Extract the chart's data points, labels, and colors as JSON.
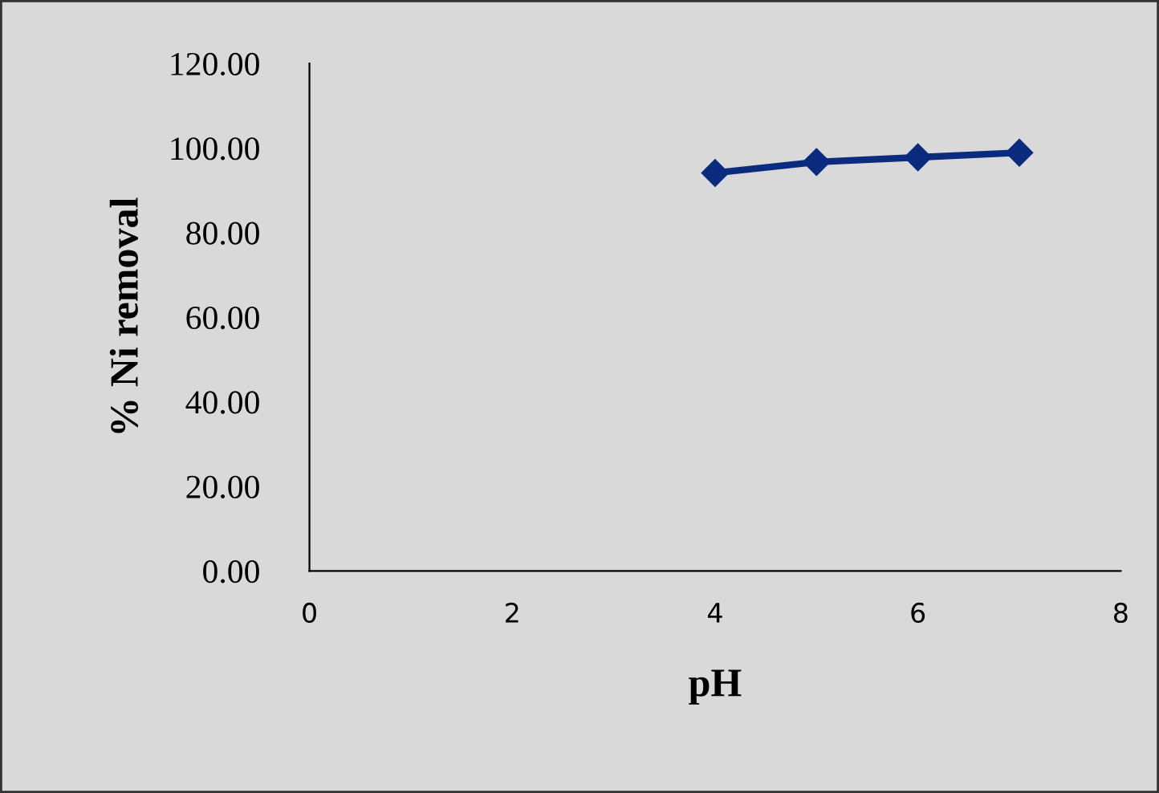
{
  "chart_data": {
    "type": "line",
    "xlabel": "pH",
    "ylabel": "% Ni removal",
    "x": [
      4,
      5,
      6,
      7
    ],
    "series": [
      {
        "color": "#0a2b7e",
        "values": [
          94.1,
          96.7,
          97.8,
          98.9
        ]
      }
    ],
    "xlim": [
      0,
      8
    ],
    "xticks": [
      0,
      2,
      4,
      6,
      8
    ],
    "ylim": [
      0,
      120
    ],
    "yticks": [
      {
        "value": 0,
        "label": "0.00"
      },
      {
        "value": 20,
        "label": "20.00"
      },
      {
        "value": 40,
        "label": "40.00"
      },
      {
        "value": 60,
        "label": "60.00"
      },
      {
        "value": 80,
        "label": "80.00"
      },
      {
        "value": 100,
        "label": "100.00"
      },
      {
        "value": 120,
        "label": "120.00"
      }
    ],
    "marker": "diamond",
    "line_style": "solid",
    "grid": false,
    "legend": false
  }
}
